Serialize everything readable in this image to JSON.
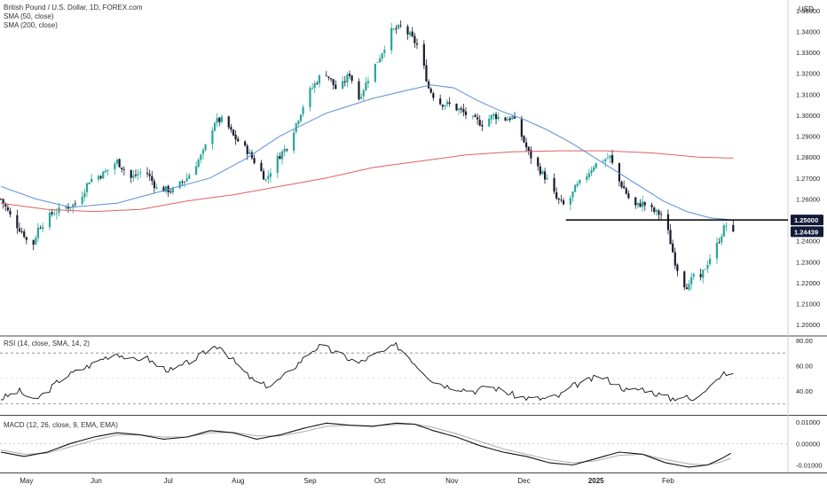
{
  "chart_data": {
    "type": "candlestick",
    "title": "British Pound / U.S. Dollar, 1D, FOREX.com",
    "currency": "USD",
    "price_axis": {
      "range": [
        1.195,
        1.355
      ],
      "ticks": [
        "1.35000",
        "1.34000",
        "1.33000",
        "1.32000",
        "1.31000",
        "1.30000",
        "1.29000",
        "1.28000",
        "1.27000",
        "1.26000",
        "1.25000",
        "1.24000",
        "1.23000",
        "1.22000",
        "1.21000",
        "1.20000"
      ]
    },
    "x_axis": {
      "labels": [
        "May",
        "Jun",
        "Jul",
        "Aug",
        "Sep",
        "Oct",
        "Nov",
        "Dec",
        "2025",
        "Feb"
      ],
      "label_days": [
        11,
        41,
        72,
        102,
        133,
        163,
        194,
        225,
        256,
        287
      ]
    },
    "price_anchors": [
      [
        0,
        1.26
      ],
      [
        5,
        1.25
      ],
      [
        10,
        1.243
      ],
      [
        13,
        1.235
      ],
      [
        16,
        1.246
      ],
      [
        22,
        1.253
      ],
      [
        28,
        1.256
      ],
      [
        33,
        1.258
      ],
      [
        38,
        1.269
      ],
      [
        44,
        1.272
      ],
      [
        50,
        1.278
      ],
      [
        56,
        1.27
      ],
      [
        62,
        1.274
      ],
      [
        67,
        1.265
      ],
      [
        74,
        1.264
      ],
      [
        80,
        1.27
      ],
      [
        87,
        1.282
      ],
      [
        92,
        1.297
      ],
      [
        96,
        1.298
      ],
      [
        100,
        1.29
      ],
      [
        106,
        1.283
      ],
      [
        112,
        1.273
      ],
      [
        114,
        1.269
      ],
      [
        118,
        1.278
      ],
      [
        123,
        1.285
      ],
      [
        127,
        1.296
      ],
      [
        132,
        1.31
      ],
      [
        137,
        1.318
      ],
      [
        140,
        1.32
      ],
      [
        145,
        1.311
      ],
      [
        150,
        1.32
      ],
      [
        154,
        1.308
      ],
      [
        159,
        1.32
      ],
      [
        163,
        1.328
      ],
      [
        168,
        1.34
      ],
      [
        172,
        1.342
      ],
      [
        176,
        1.338
      ],
      [
        180,
        1.332
      ],
      [
        184,
        1.313
      ],
      [
        188,
        1.306
      ],
      [
        193,
        1.305
      ],
      [
        198,
        1.302
      ],
      [
        203,
        1.298
      ],
      [
        207,
        1.296
      ],
      [
        212,
        1.3
      ],
      [
        216,
        1.298
      ],
      [
        220,
        1.299
      ],
      [
        224,
        1.29
      ],
      [
        227,
        1.282
      ],
      [
        231,
        1.275
      ],
      [
        235,
        1.269
      ],
      [
        239,
        1.26
      ],
      [
        243,
        1.256
      ],
      [
        247,
        1.265
      ],
      [
        251,
        1.27
      ],
      [
        255,
        1.276
      ],
      [
        258,
        1.278
      ],
      [
        262,
        1.28
      ],
      [
        265,
        1.27
      ],
      [
        268,
        1.265
      ],
      [
        272,
        1.256
      ],
      [
        276,
        1.258
      ],
      [
        281,
        1.254
      ],
      [
        285,
        1.252
      ],
      [
        287,
        1.244
      ],
      [
        290,
        1.23
      ],
      [
        293,
        1.22
      ],
      [
        296,
        1.218
      ],
      [
        298,
        1.224
      ],
      [
        300,
        1.217
      ],
      [
        302,
        1.225
      ],
      [
        305,
        1.232
      ],
      [
        308,
        1.238
      ],
      [
        311,
        1.246
      ],
      [
        313,
        1.249
      ],
      [
        315,
        1.2444
      ]
    ],
    "sma50": [
      [
        0,
        1.266
      ],
      [
        15,
        1.26
      ],
      [
        30,
        1.256
      ],
      [
        50,
        1.258
      ],
      [
        70,
        1.264
      ],
      [
        90,
        1.27
      ],
      [
        105,
        1.279
      ],
      [
        120,
        1.29
      ],
      [
        140,
        1.301
      ],
      [
        160,
        1.308
      ],
      [
        175,
        1.312
      ],
      [
        185,
        1.3145
      ],
      [
        195,
        1.313
      ],
      [
        205,
        1.307
      ],
      [
        215,
        1.302
      ],
      [
        225,
        1.298
      ],
      [
        235,
        1.293
      ],
      [
        245,
        1.287
      ],
      [
        255,
        1.28
      ],
      [
        265,
        1.273
      ],
      [
        275,
        1.266
      ],
      [
        285,
        1.259
      ],
      [
        295,
        1.254
      ],
      [
        305,
        1.251
      ],
      [
        315,
        1.25
      ]
    ],
    "sma200": [
      [
        0,
        1.258
      ],
      [
        20,
        1.255
      ],
      [
        40,
        1.254
      ],
      [
        60,
        1.255
      ],
      [
        80,
        1.259
      ],
      [
        100,
        1.262
      ],
      [
        120,
        1.266
      ],
      [
        140,
        1.27
      ],
      [
        160,
        1.275
      ],
      [
        180,
        1.278
      ],
      [
        200,
        1.281
      ],
      [
        220,
        1.2825
      ],
      [
        240,
        1.283
      ],
      [
        260,
        1.283
      ],
      [
        280,
        1.282
      ],
      [
        300,
        1.28
      ],
      [
        315,
        1.2795
      ]
    ],
    "horizontal_line": {
      "value": 1.25,
      "start_day": 243
    },
    "price_labels": {
      "level": "1.25000",
      "last": "1.24439"
    },
    "rsi": {
      "label": "RSI (14, close, SMA, 14, 2)",
      "range": [
        22,
        82
      ],
      "ticks": [
        "80.00",
        "60.00",
        "40.00"
      ],
      "band": [
        70,
        30
      ],
      "points": [
        [
          0,
          34
        ],
        [
          8,
          40
        ],
        [
          14,
          32
        ],
        [
          20,
          40
        ],
        [
          26,
          50
        ],
        [
          32,
          55
        ],
        [
          38,
          60
        ],
        [
          44,
          66
        ],
        [
          50,
          70
        ],
        [
          56,
          64
        ],
        [
          62,
          67
        ],
        [
          68,
          59
        ],
        [
          74,
          56
        ],
        [
          80,
          62
        ],
        [
          86,
          68
        ],
        [
          90,
          74
        ],
        [
          94,
          76
        ],
        [
          98,
          68
        ],
        [
          104,
          56
        ],
        [
          110,
          46
        ],
        [
          116,
          44
        ],
        [
          122,
          52
        ],
        [
          128,
          62
        ],
        [
          134,
          72
        ],
        [
          138,
          76
        ],
        [
          142,
          72
        ],
        [
          148,
          67
        ],
        [
          154,
          62
        ],
        [
          160,
          68
        ],
        [
          166,
          72
        ],
        [
          170,
          76
        ],
        [
          174,
          70
        ],
        [
          180,
          58
        ],
        [
          186,
          48
        ],
        [
          192,
          44
        ],
        [
          198,
          42
        ],
        [
          204,
          40
        ],
        [
          210,
          44
        ],
        [
          216,
          40
        ],
        [
          222,
          36
        ],
        [
          228,
          34
        ],
        [
          234,
          34
        ],
        [
          240,
          36
        ],
        [
          246,
          44
        ],
        [
          252,
          48
        ],
        [
          258,
          52
        ],
        [
          264,
          46
        ],
        [
          270,
          40
        ],
        [
          276,
          42
        ],
        [
          282,
          38
        ],
        [
          288,
          34
        ],
        [
          294,
          36
        ],
        [
          298,
          32
        ],
        [
          302,
          40
        ],
        [
          306,
          48
        ],
        [
          310,
          52
        ],
        [
          313,
          55
        ],
        [
          315,
          52
        ]
      ]
    },
    "macd": {
      "label": "MACD (12, 26, close, 9, EMA, EMA)",
      "range": [
        -0.0135,
        0.0125
      ],
      "ticks": [
        "0.01000",
        "0.00000",
        "-0.01000"
      ],
      "macd_line": [
        [
          0,
          -0.004
        ],
        [
          10,
          -0.006
        ],
        [
          20,
          -0.004
        ],
        [
          30,
          0.0
        ],
        [
          40,
          0.003
        ],
        [
          50,
          0.005
        ],
        [
          60,
          0.004
        ],
        [
          70,
          0.002
        ],
        [
          80,
          0.003
        ],
        [
          90,
          0.006
        ],
        [
          100,
          0.005
        ],
        [
          110,
          0.002
        ],
        [
          120,
          0.004
        ],
        [
          130,
          0.007
        ],
        [
          140,
          0.0095
        ],
        [
          150,
          0.0085
        ],
        [
          160,
          0.008
        ],
        [
          170,
          0.0095
        ],
        [
          178,
          0.009
        ],
        [
          186,
          0.006
        ],
        [
          196,
          0.003
        ],
        [
          206,
          -0.001
        ],
        [
          216,
          -0.004
        ],
        [
          226,
          -0.006
        ],
        [
          236,
          -0.009
        ],
        [
          246,
          -0.01
        ],
        [
          256,
          -0.007
        ],
        [
          266,
          -0.004
        ],
        [
          276,
          -0.005
        ],
        [
          286,
          -0.009
        ],
        [
          296,
          -0.011
        ],
        [
          304,
          -0.01
        ],
        [
          310,
          -0.007
        ],
        [
          315,
          -0.004
        ]
      ],
      "signal_line": [
        [
          0,
          -0.003
        ],
        [
          10,
          -0.005
        ],
        [
          20,
          -0.0045
        ],
        [
          30,
          -0.0015
        ],
        [
          40,
          0.0015
        ],
        [
          50,
          0.004
        ],
        [
          60,
          0.004
        ],
        [
          70,
          0.003
        ],
        [
          80,
          0.003
        ],
        [
          90,
          0.005
        ],
        [
          100,
          0.0052
        ],
        [
          110,
          0.0035
        ],
        [
          120,
          0.0035
        ],
        [
          130,
          0.0055
        ],
        [
          140,
          0.008
        ],
        [
          150,
          0.0085
        ],
        [
          160,
          0.0082
        ],
        [
          170,
          0.0088
        ],
        [
          178,
          0.009
        ],
        [
          186,
          0.0075
        ],
        [
          196,
          0.0045
        ],
        [
          206,
          0.001
        ],
        [
          216,
          -0.0025
        ],
        [
          226,
          -0.005
        ],
        [
          236,
          -0.0075
        ],
        [
          246,
          -0.009
        ],
        [
          256,
          -0.008
        ],
        [
          266,
          -0.0055
        ],
        [
          276,
          -0.005
        ],
        [
          286,
          -0.0075
        ],
        [
          296,
          -0.0095
        ],
        [
          304,
          -0.01
        ],
        [
          310,
          -0.0085
        ],
        [
          315,
          -0.0065
        ]
      ]
    }
  },
  "legend": {
    "title": "British Pound / U.S. Dollar, 1D, FOREX.com",
    "sma50": "SMA (50, close)",
    "sma200": "SMA (200, close)"
  },
  "colors": {
    "up": "#26a69a",
    "down": "#1a1a2e",
    "sma50": "#5b8fd8",
    "sma200": "#e06060",
    "rsi_line": "#111111",
    "macd_line": "#111111",
    "signal_line": "#aaaaaa",
    "label_bg": "#131a38"
  }
}
